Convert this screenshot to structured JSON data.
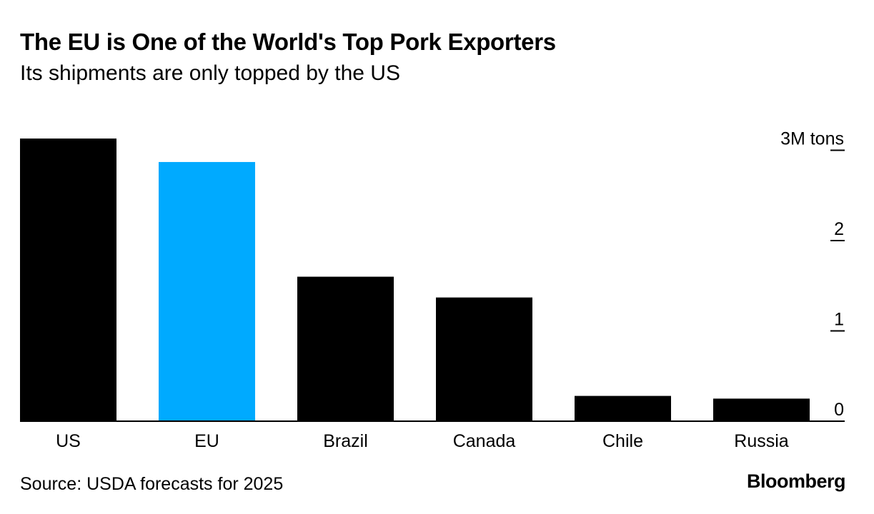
{
  "header": {
    "title": "The EU is One of the World's Top Pork Exporters",
    "subtitle": "Its shipments are only topped by the US"
  },
  "footer": {
    "source": "Source: USDA forecasts for 2025",
    "brand": "Bloomberg"
  },
  "colors": {
    "default_bar": "#000000",
    "highlight_bar": "#00aaff"
  },
  "chart_data": {
    "type": "bar",
    "categories": [
      "US",
      "EU",
      "Brazil",
      "Canada",
      "Chile",
      "Russia"
    ],
    "values": [
      3.13,
      2.87,
      1.6,
      1.37,
      0.28,
      0.25
    ],
    "highlight": "EU",
    "ylim": [
      0,
      3
    ],
    "yticks": [
      {
        "value": 0,
        "label": "0"
      },
      {
        "value": 1,
        "label": "1"
      },
      {
        "value": 2,
        "label": "2"
      },
      {
        "value": 3,
        "label": "3M tons"
      }
    ],
    "grid": false,
    "y_axis_side": "right"
  }
}
